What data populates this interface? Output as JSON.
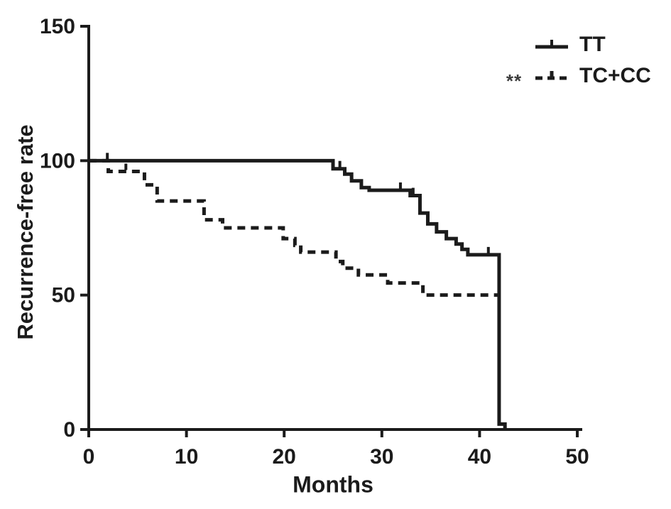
{
  "figure": {
    "background": "#ffffff",
    "ink": "#1b1b1b"
  },
  "annotations": {
    "significance": "**"
  },
  "chart_data": {
    "type": "line",
    "subtype": "kaplan-meier-step",
    "title": "",
    "xlabel": "Months",
    "ylabel": "Recurrence-free rate",
    "xlim": [
      0,
      50
    ],
    "ylim": [
      0,
      150
    ],
    "xticks": [
      0,
      10,
      20,
      30,
      40,
      50
    ],
    "yticks": [
      0,
      50,
      100,
      150
    ],
    "grid": false,
    "legend_position": "top-right",
    "series": [
      {
        "name": "TT",
        "style": "solid",
        "end_month": 42.6,
        "steps": [
          [
            0,
            100
          ],
          [
            25,
            97
          ],
          [
            26.2,
            95
          ],
          [
            26.9,
            92.5
          ],
          [
            27.9,
            90
          ],
          [
            28.7,
            89
          ],
          [
            32.9,
            87
          ],
          [
            33.9,
            80.5
          ],
          [
            34.7,
            76.5
          ],
          [
            35.6,
            73.5
          ],
          [
            36.6,
            71
          ],
          [
            37.6,
            69
          ],
          [
            38.2,
            67
          ],
          [
            38.8,
            65
          ],
          [
            42,
            2
          ],
          [
            42.6,
            0
          ]
        ],
        "censor_marks": [
          [
            25.7,
            97
          ],
          [
            31.9,
            89
          ],
          [
            33.2,
            87
          ],
          [
            40.9,
            65
          ]
        ]
      },
      {
        "name": "TC+CC",
        "style": "dashed",
        "end_month": 42,
        "steps": [
          [
            0,
            100
          ],
          [
            2,
            96
          ],
          [
            5.7,
            91
          ],
          [
            7,
            85
          ],
          [
            11.8,
            78
          ],
          [
            13.7,
            75
          ],
          [
            19.9,
            71
          ],
          [
            21.1,
            68.5
          ],
          [
            21.7,
            66
          ],
          [
            25.3,
            62.5
          ],
          [
            26,
            60
          ],
          [
            27.6,
            57.5
          ],
          [
            30.6,
            54.5
          ],
          [
            34.2,
            50
          ]
        ],
        "censor_marks": [
          [
            1.9,
            100
          ],
          [
            3.8,
            96
          ]
        ]
      }
    ]
  }
}
